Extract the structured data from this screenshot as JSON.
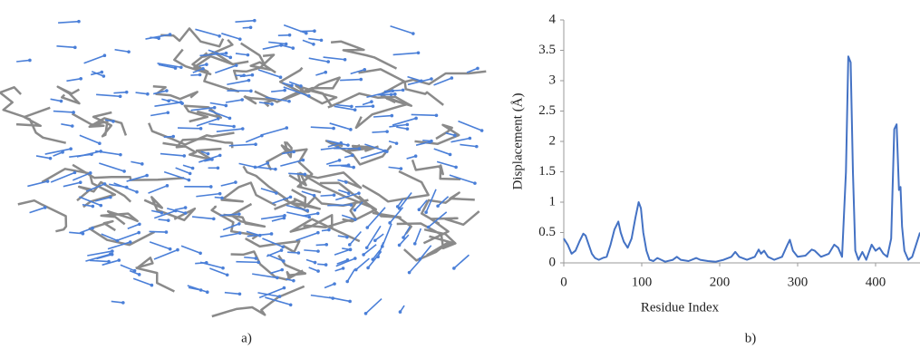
{
  "chart_data": {
    "type": "line",
    "xlabel": "Residue Index",
    "ylabel": "Displacement (Å)",
    "x": [
      0,
      5,
      10,
      15,
      20,
      25,
      28,
      32,
      36,
      40,
      45,
      50,
      55,
      60,
      65,
      70,
      73,
      77,
      82,
      87,
      92,
      96,
      99,
      102,
      106,
      110,
      115,
      120,
      125,
      130,
      140,
      145,
      150,
      160,
      170,
      175,
      185,
      195,
      205,
      215,
      220,
      225,
      235,
      245,
      250,
      253,
      257,
      262,
      270,
      280,
      287,
      290,
      294,
      300,
      310,
      318,
      322,
      330,
      340,
      347,
      352,
      357,
      362,
      365,
      368,
      371,
      374,
      378,
      383,
      388,
      395,
      400,
      405,
      410,
      415,
      420,
      424,
      427,
      430,
      432,
      434,
      437,
      442,
      447,
      452,
      457
    ],
    "values": [
      0.4,
      0.3,
      0.15,
      0.2,
      0.35,
      0.48,
      0.45,
      0.3,
      0.15,
      0.08,
      0.05,
      0.08,
      0.1,
      0.3,
      0.55,
      0.68,
      0.5,
      0.35,
      0.25,
      0.4,
      0.75,
      1.0,
      0.9,
      0.5,
      0.2,
      0.05,
      0.03,
      0.08,
      0.05,
      0.02,
      0.05,
      0.1,
      0.05,
      0.03,
      0.08,
      0.05,
      0.03,
      0.02,
      0.05,
      0.1,
      0.18,
      0.1,
      0.05,
      0.1,
      0.22,
      0.15,
      0.2,
      0.1,
      0.05,
      0.1,
      0.3,
      0.38,
      0.2,
      0.1,
      0.12,
      0.22,
      0.2,
      0.1,
      0.15,
      0.3,
      0.25,
      0.1,
      1.5,
      3.4,
      3.3,
      1.5,
      0.2,
      0.05,
      0.18,
      0.05,
      0.3,
      0.2,
      0.25,
      0.15,
      0.1,
      0.4,
      2.2,
      2.28,
      1.2,
      1.25,
      0.6,
      0.2,
      0.05,
      0.1,
      0.3,
      0.5
    ],
    "color": "#4472c4",
    "xlim": [
      0,
      457
    ],
    "xticks": [
      0,
      100,
      200,
      300,
      400
    ],
    "ylim": [
      0,
      4
    ],
    "yticks": [
      0,
      0.5,
      1,
      1.5,
      2,
      2.5,
      3,
      3.5,
      4
    ]
  },
  "panel_labels": [
    "a)",
    "b)"
  ]
}
